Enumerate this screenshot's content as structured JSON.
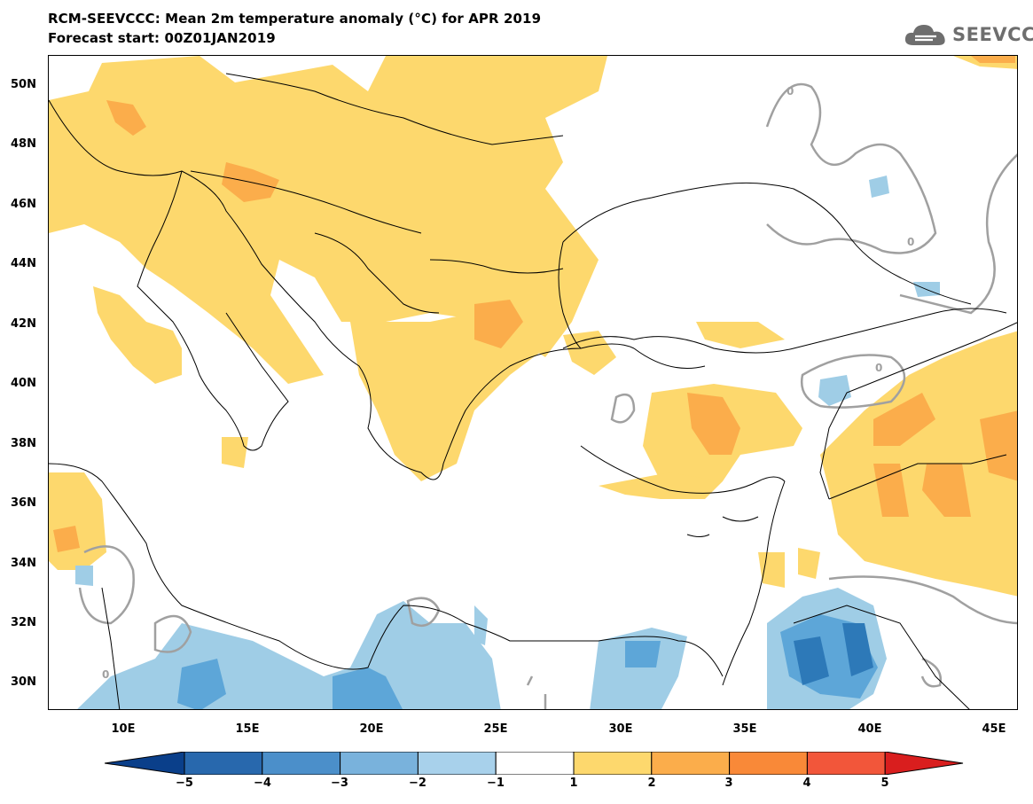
{
  "header": {
    "title": "RCM-SEEVCCC: Mean 2m temperature anomaly (°C) for APR 2019",
    "subtitle": "Forecast start: 00Z01JAN2019"
  },
  "logo": {
    "text": "SEEVCCC",
    "icon": "cloud-icon",
    "color": "#6e6e6e"
  },
  "map": {
    "type": "filled-contour-map",
    "region": "Southeastern Europe, Mediterranean, Middle East",
    "lat_labels": [
      "50N",
      "48N",
      "46N",
      "44N",
      "42N",
      "40N",
      "38N",
      "36N",
      "34N",
      "32N",
      "30N"
    ],
    "lon_labels": [
      "10E",
      "15E",
      "20E",
      "25E",
      "30E",
      "35E",
      "40E",
      "45E"
    ],
    "contour_labels": [
      "0",
      "0",
      "0",
      "0"
    ],
    "colors": {
      "land_outline": "#000000",
      "zero_contour": "#a0a0a0",
      "c_1_2": "#fdd86d",
      "c_2_3": "#fbad4b",
      "c_3_4": "#f98938",
      "c_neg1_neg2": "#9fcde6",
      "c_neg2_neg3": "#5da6d8",
      "c_neg3_neg4": "#2d79b8"
    }
  },
  "colorbar": {
    "labels": [
      "−5",
      "−4",
      "−3",
      "−2",
      "−1",
      "1",
      "2",
      "3",
      "4",
      "5"
    ],
    "colors": [
      "#0a3f8a",
      "#2868ad",
      "#4b8fca",
      "#79b2dc",
      "#a8d1eb",
      "#ffffff",
      "#fdd86d",
      "#fbad4b",
      "#f98938",
      "#f2563a",
      "#d91e1e"
    ]
  }
}
